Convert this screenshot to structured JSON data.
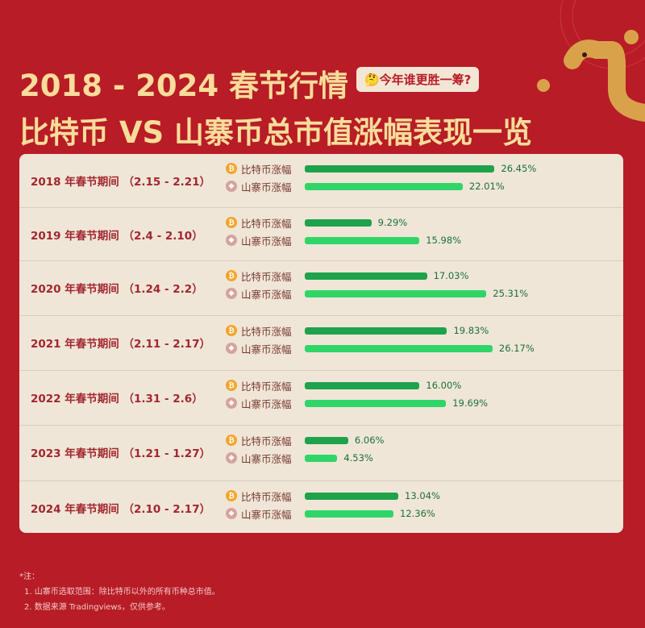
{
  "header": {
    "title_line1": "2018 - 2024 春节行情",
    "title_line2": "比特币 VS 山寨币总市值涨幅表现一览",
    "badge": "🤔今年谁更胜一筹?"
  },
  "colors": {
    "background": "#b81c26",
    "title": "#f8dc9a",
    "btc_bar": "#1ea24b",
    "alt_bar": "#2fd667",
    "panel": "#efe6d8"
  },
  "chart_data": {
    "type": "bar",
    "orientation": "horizontal",
    "unit": "%",
    "series_labels": {
      "btc": "比特币涨幅",
      "alt": "山寨币涨幅"
    },
    "categories": [
      "2018 年春节期间 （2.15 - 2.21）",
      "2019 年春节期间 （2.4 - 2.10）",
      "2020 年春节期间 （1.24 - 2.2）",
      "2021 年春节期间 （2.11 - 2.17）",
      "2022 年春节期间 （1.31 - 2.6）",
      "2023 年春节期间 （1.21 - 1.27）",
      "2024 年春节期间 （2.10 - 2.17）"
    ],
    "series": [
      {
        "name": "比特币涨幅",
        "values": [
          26.45,
          9.29,
          17.03,
          19.83,
          16.0,
          6.06,
          13.04
        ],
        "labels": [
          "26.45%",
          "9.29%",
          "17.03%",
          "19.83%",
          "16.00%",
          "6.06%",
          "13.04%"
        ]
      },
      {
        "name": "山寨币涨幅",
        "values": [
          22.01,
          15.98,
          25.31,
          26.17,
          19.69,
          4.53,
          12.36
        ],
        "labels": [
          "22.01%",
          "15.98%",
          "25.31%",
          "26.17%",
          "19.69%",
          "4.53%",
          "12.36%"
        ]
      }
    ]
  },
  "notes": {
    "heading": "*注：",
    "items": [
      "1. 山寨币选取范围：除比特币以外的所有币种总市值。",
      "2. 数据来源 Tradingviews，仅供参考。"
    ]
  }
}
